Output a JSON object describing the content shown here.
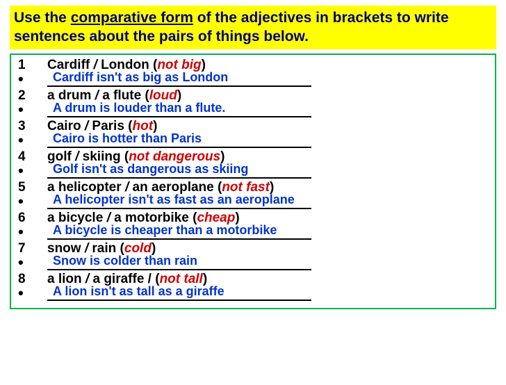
{
  "header": {
    "pre": "Use the ",
    "underlined": "comparative form",
    "post": " of the adjectives in brackets to write sentences about the pairs of things below."
  },
  "items": [
    {
      "num": "1",
      "a": "Cardiff",
      "b": "London",
      "adj": "not big",
      "answer": "Cardiff isn't as big as London"
    },
    {
      "num": "2",
      "a": "a drum",
      "b": "a flute",
      "adj": "loud",
      "answer": "A drum is louder than a flute."
    },
    {
      "num": "3",
      "a": "Cairo",
      "b": "Paris",
      "adj": "hot",
      "answer": "Cairo is hotter than Paris"
    },
    {
      "num": "4",
      "a": "golf",
      "b": "skiing",
      "adj": "not dangerous",
      "answer": "Golf isn't as dangerous as skiing"
    },
    {
      "num": "5",
      "a": "a helicopter",
      "b": "an aeroplane",
      "adj": "not fast",
      "answer": "A helicopter isn't as fast as an aeroplane"
    },
    {
      "num": "6",
      "a": "a bicycle",
      "b": "a motorbike",
      "adj": "cheap",
      "answer": "A bicycle is cheaper than a motorbike"
    },
    {
      "num": "7",
      "a": "snow",
      "b": "rain",
      "adj": "cold",
      "answer": "Snow is colder than rain"
    },
    {
      "num": "8",
      "a": "a lion",
      "b": "a giraffe /",
      "adj": "not tall",
      "answer": "A lion isn't as tall as a giraffe"
    }
  ],
  "colors": {
    "header_bg": "#ffff00",
    "header_text": "#000080",
    "border": "#00b050",
    "adj": "#d00000",
    "answer": "#0033cc"
  }
}
